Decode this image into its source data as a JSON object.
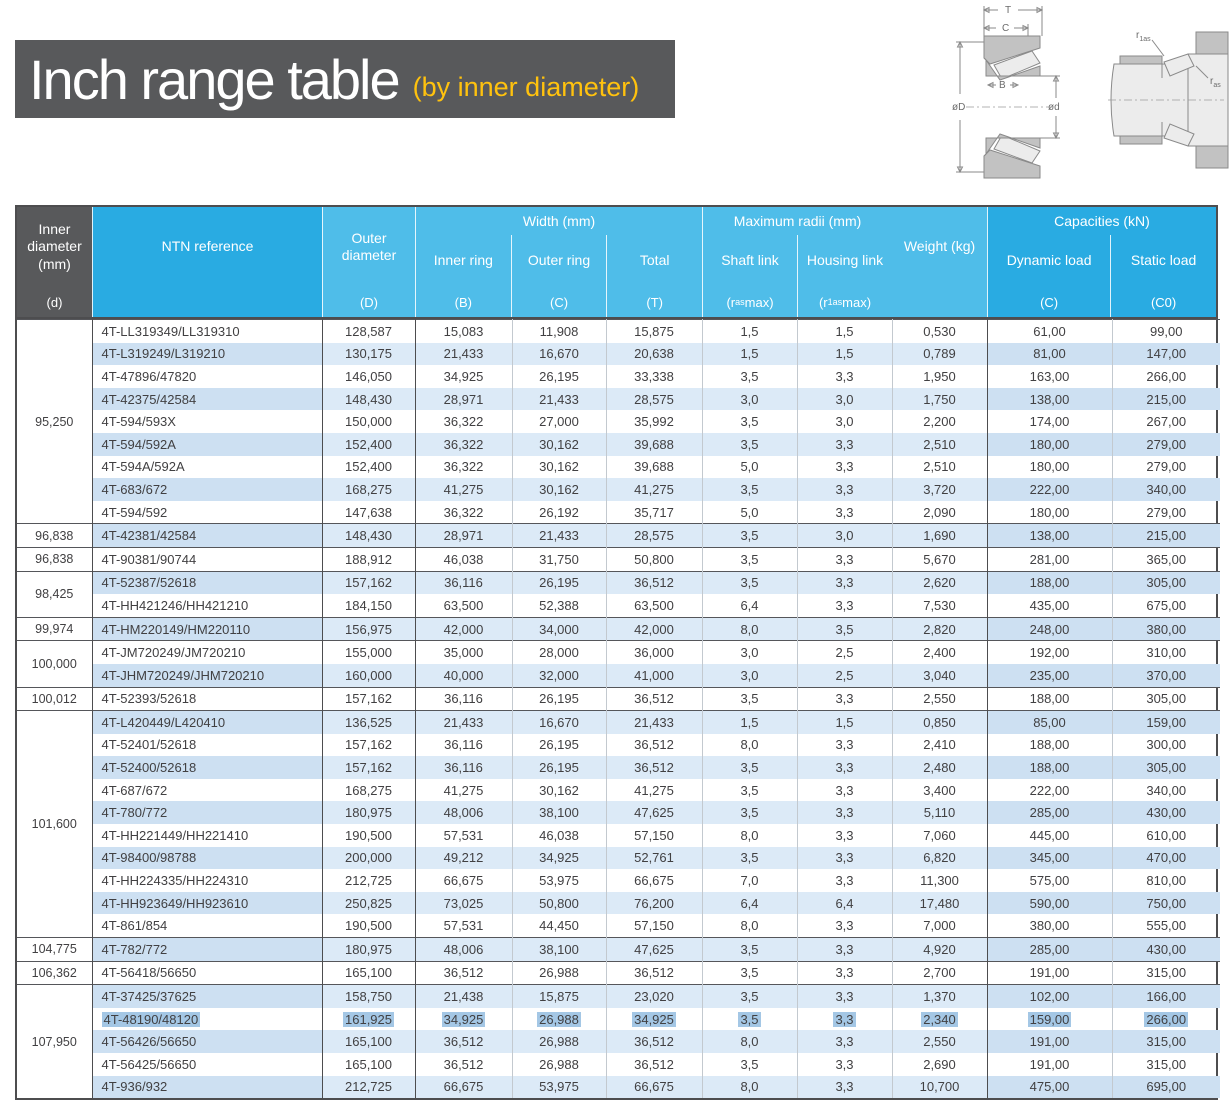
{
  "title": {
    "main": "Inch range table",
    "sub": "(by inner diameter)"
  },
  "colors": {
    "banner_gray": "#58595b",
    "title_yellow": "#ffc20e",
    "header_blue": "#29abe2",
    "header_light_blue": "#4fbde9",
    "row_blue": "#dceaf7",
    "row_blue_deep": "#cde0f2",
    "selection_blue": "#a4c7e5"
  },
  "diagrams": {
    "left": {
      "dim_T": "T",
      "dim_C": "C",
      "dim_B": "B",
      "dim_oD": "øD",
      "dim_od": "ød"
    },
    "right": {
      "r1as_pre": "r",
      "r1as_sub": "1as",
      "ras_pre": "r",
      "ras_sub": "as"
    }
  },
  "table": {
    "headers": {
      "inner_diameter": {
        "main": "Inner diameter (mm)",
        "letter": "(d)"
      },
      "ntn_reference": {
        "main": "NTN reference"
      },
      "outer_diameter": {
        "main": "Outer diameter",
        "letter": "(D)"
      },
      "width_group": {
        "main": "Width (mm)"
      },
      "inner_ring": {
        "main": "Inner ring",
        "letter": "(B)"
      },
      "outer_ring": {
        "main": "Outer ring",
        "letter": "(C)"
      },
      "total": {
        "main": "Total",
        "letter": "(T)"
      },
      "radii_group": {
        "main": "Maximum radii (mm)"
      },
      "shaft_link": {
        "main": "Shaft link",
        "pre": "(r",
        "sub": "as",
        "post": " max)"
      },
      "housing_link": {
        "main": "Housing link",
        "pre": "(r",
        "sub": "1as",
        "post": " max)"
      },
      "weight": {
        "main": "Weight (kg)"
      },
      "capacities_group": {
        "main": "Capacities (kN)"
      },
      "dynamic_load": {
        "main": "Dynamic load",
        "letter": "(C)"
      },
      "static_load": {
        "main": "Static load",
        "letter": "(C0)"
      }
    },
    "groups": [
      {
        "d": "95,250",
        "rows": [
          {
            "ref": "4T-LL319349/LL319310",
            "D": "128,587",
            "B": "15,083",
            "C": "11,908",
            "T": "15,875",
            "ras": "1,5",
            "r1as": "1,5",
            "wt": "0,530",
            "dyn": "61,00",
            "stat": "99,00"
          },
          {
            "ref": "4T-L319249/L319210",
            "D": "130,175",
            "B": "21,433",
            "C": "16,670",
            "T": "20,638",
            "ras": "1,5",
            "r1as": "1,5",
            "wt": "0,789",
            "dyn": "81,00",
            "stat": "147,00"
          },
          {
            "ref": "4T-47896/47820",
            "D": "146,050",
            "B": "34,925",
            "C": "26,195",
            "T": "33,338",
            "ras": "3,5",
            "r1as": "3,3",
            "wt": "1,950",
            "dyn": "163,00",
            "stat": "266,00"
          },
          {
            "ref": "4T-42375/42584",
            "D": "148,430",
            "B": "28,971",
            "C": "21,433",
            "T": "28,575",
            "ras": "3,0",
            "r1as": "3,0",
            "wt": "1,750",
            "dyn": "138,00",
            "stat": "215,00"
          },
          {
            "ref": "4T-594/593X",
            "D": "150,000",
            "B": "36,322",
            "C": "27,000",
            "T": "35,992",
            "ras": "3,5",
            "r1as": "3,0",
            "wt": "2,200",
            "dyn": "174,00",
            "stat": "267,00"
          },
          {
            "ref": "4T-594/592A",
            "D": "152,400",
            "B": "36,322",
            "C": "30,162",
            "T": "39,688",
            "ras": "3,5",
            "r1as": "3,3",
            "wt": "2,510",
            "dyn": "180,00",
            "stat": "279,00"
          },
          {
            "ref": "4T-594A/592A",
            "D": "152,400",
            "B": "36,322",
            "C": "30,162",
            "T": "39,688",
            "ras": "5,0",
            "r1as": "3,3",
            "wt": "2,510",
            "dyn": "180,00",
            "stat": "279,00"
          },
          {
            "ref": "4T-683/672",
            "D": "168,275",
            "B": "41,275",
            "C": "30,162",
            "T": "41,275",
            "ras": "3,5",
            "r1as": "3,3",
            "wt": "3,720",
            "dyn": "222,00",
            "stat": "340,00"
          },
          {
            "ref": "4T-594/592",
            "D": "147,638",
            "B": "36,322",
            "C": "26,192",
            "T": "35,717",
            "ras": "5,0",
            "r1as": "3,3",
            "wt": "2,090",
            "dyn": "180,00",
            "stat": "279,00"
          }
        ]
      },
      {
        "d": "96,838",
        "rows": [
          {
            "ref": "4T-42381/42584",
            "D": "148,430",
            "B": "28,971",
            "C": "21,433",
            "T": "28,575",
            "ras": "3,5",
            "r1as": "3,0",
            "wt": "1,690",
            "dyn": "138,00",
            "stat": "215,00"
          }
        ]
      },
      {
        "d": "96,838",
        "rows": [
          {
            "ref": "4T-90381/90744",
            "D": "188,912",
            "B": "46,038",
            "C": "31,750",
            "T": "50,800",
            "ras": "3,5",
            "r1as": "3,3",
            "wt": "5,670",
            "dyn": "281,00",
            "stat": "365,00"
          }
        ]
      },
      {
        "d": "98,425",
        "rows": [
          {
            "ref": "4T-52387/52618",
            "D": "157,162",
            "B": "36,116",
            "C": "26,195",
            "T": "36,512",
            "ras": "3,5",
            "r1as": "3,3",
            "wt": "2,620",
            "dyn": "188,00",
            "stat": "305,00"
          },
          {
            "ref": "4T-HH421246/HH421210",
            "D": "184,150",
            "B": "63,500",
            "C": "52,388",
            "T": "63,500",
            "ras": "6,4",
            "r1as": "3,3",
            "wt": "7,530",
            "dyn": "435,00",
            "stat": "675,00"
          }
        ]
      },
      {
        "d": "99,974",
        "rows": [
          {
            "ref": "4T-HM220149/HM220110",
            "D": "156,975",
            "B": "42,000",
            "C": "34,000",
            "T": "42,000",
            "ras": "8,0",
            "r1as": "3,5",
            "wt": "2,820",
            "dyn": "248,00",
            "stat": "380,00"
          }
        ]
      },
      {
        "d": "100,000",
        "rows": [
          {
            "ref": "4T-JM720249/JM720210",
            "D": "155,000",
            "B": "35,000",
            "C": "28,000",
            "T": "36,000",
            "ras": "3,0",
            "r1as": "2,5",
            "wt": "2,400",
            "dyn": "192,00",
            "stat": "310,00"
          },
          {
            "ref": "4T-JHM720249/JHM720210",
            "D": "160,000",
            "B": "40,000",
            "C": "32,000",
            "T": "41,000",
            "ras": "3,0",
            "r1as": "2,5",
            "wt": "3,040",
            "dyn": "235,00",
            "stat": "370,00"
          }
        ]
      },
      {
        "d": "100,012",
        "rows": [
          {
            "ref": "4T-52393/52618",
            "D": "157,162",
            "B": "36,116",
            "C": "26,195",
            "T": "36,512",
            "ras": "3,5",
            "r1as": "3,3",
            "wt": "2,550",
            "dyn": "188,00",
            "stat": "305,00"
          }
        ]
      },
      {
        "d": "101,600",
        "rows": [
          {
            "ref": "4T-L420449/L420410",
            "D": "136,525",
            "B": "21,433",
            "C": "16,670",
            "T": "21,433",
            "ras": "1,5",
            "r1as": "1,5",
            "wt": "0,850",
            "dyn": "85,00",
            "stat": "159,00"
          },
          {
            "ref": "4T-52401/52618",
            "D": "157,162",
            "B": "36,116",
            "C": "26,195",
            "T": "36,512",
            "ras": "8,0",
            "r1as": "3,3",
            "wt": "2,410",
            "dyn": "188,00",
            "stat": "300,00"
          },
          {
            "ref": "4T-52400/52618",
            "D": "157,162",
            "B": "36,116",
            "C": "26,195",
            "T": "36,512",
            "ras": "3,5",
            "r1as": "3,3",
            "wt": "2,480",
            "dyn": "188,00",
            "stat": "305,00"
          },
          {
            "ref": "4T-687/672",
            "D": "168,275",
            "B": "41,275",
            "C": "30,162",
            "T": "41,275",
            "ras": "3,5",
            "r1as": "3,3",
            "wt": "3,400",
            "dyn": "222,00",
            "stat": "340,00"
          },
          {
            "ref": "4T-780/772",
            "D": "180,975",
            "B": "48,006",
            "C": "38,100",
            "T": "47,625",
            "ras": "3,5",
            "r1as": "3,3",
            "wt": "5,110",
            "dyn": "285,00",
            "stat": "430,00"
          },
          {
            "ref": "4T-HH221449/HH221410",
            "D": "190,500",
            "B": "57,531",
            "C": "46,038",
            "T": "57,150",
            "ras": "8,0",
            "r1as": "3,3",
            "wt": "7,060",
            "dyn": "445,00",
            "stat": "610,00"
          },
          {
            "ref": "4T-98400/98788",
            "D": "200,000",
            "B": "49,212",
            "C": "34,925",
            "T": "52,761",
            "ras": "3,5",
            "r1as": "3,3",
            "wt": "6,820",
            "dyn": "345,00",
            "stat": "470,00"
          },
          {
            "ref": "4T-HH224335/HH224310",
            "D": "212,725",
            "B": "66,675",
            "C": "53,975",
            "T": "66,675",
            "ras": "7,0",
            "r1as": "3,3",
            "wt": "11,300",
            "dyn": "575,00",
            "stat": "810,00"
          },
          {
            "ref": "4T-HH923649/HH923610",
            "D": "250,825",
            "B": "73,025",
            "C": "50,800",
            "T": "76,200",
            "ras": "6,4",
            "r1as": "6,4",
            "wt": "17,480",
            "dyn": "590,00",
            "stat": "750,00"
          },
          {
            "ref": "4T-861/854",
            "D": "190,500",
            "B": "57,531",
            "C": "44,450",
            "T": "57,150",
            "ras": "8,0",
            "r1as": "3,3",
            "wt": "7,000",
            "dyn": "380,00",
            "stat": "555,00"
          }
        ]
      },
      {
        "d": "104,775",
        "rows": [
          {
            "ref": "4T-782/772",
            "D": "180,975",
            "B": "48,006",
            "C": "38,100",
            "T": "47,625",
            "ras": "3,5",
            "r1as": "3,3",
            "wt": "4,920",
            "dyn": "285,00",
            "stat": "430,00"
          }
        ]
      },
      {
        "d": "106,362",
        "rows": [
          {
            "ref": "4T-56418/56650",
            "D": "165,100",
            "B": "36,512",
            "C": "26,988",
            "T": "36,512",
            "ras": "3,5",
            "r1as": "3,3",
            "wt": "2,700",
            "dyn": "191,00",
            "stat": "315,00"
          }
        ]
      },
      {
        "d": "107,950",
        "rows": [
          {
            "ref": "4T-37425/37625",
            "D": "158,750",
            "B": "21,438",
            "C": "15,875",
            "T": "23,020",
            "ras": "3,5",
            "r1as": "3,3",
            "wt": "1,370",
            "dyn": "102,00",
            "stat": "166,00"
          },
          {
            "ref": "4T-48190/48120",
            "D": "161,925",
            "B": "34,925",
            "C": "26,988",
            "T": "34,925",
            "ras": "3,5",
            "r1as": "3,3",
            "wt": "2,340",
            "dyn": "159,00",
            "stat": "266,00",
            "highlighted": true
          },
          {
            "ref": "4T-56426/56650",
            "D": "165,100",
            "B": "36,512",
            "C": "26,988",
            "T": "36,512",
            "ras": "8,0",
            "r1as": "3,3",
            "wt": "2,550",
            "dyn": "191,00",
            "stat": "315,00"
          },
          {
            "ref": "4T-56425/56650",
            "D": "165,100",
            "B": "36,512",
            "C": "26,988",
            "T": "36,512",
            "ras": "3,5",
            "r1as": "3,3",
            "wt": "2,690",
            "dyn": "191,00",
            "stat": "315,00"
          },
          {
            "ref": "4T-936/932",
            "D": "212,725",
            "B": "66,675",
            "C": "53,975",
            "T": "66,675",
            "ras": "8,0",
            "r1as": "3,3",
            "wt": "10,700",
            "dyn": "475,00",
            "stat": "695,00"
          }
        ]
      }
    ]
  }
}
